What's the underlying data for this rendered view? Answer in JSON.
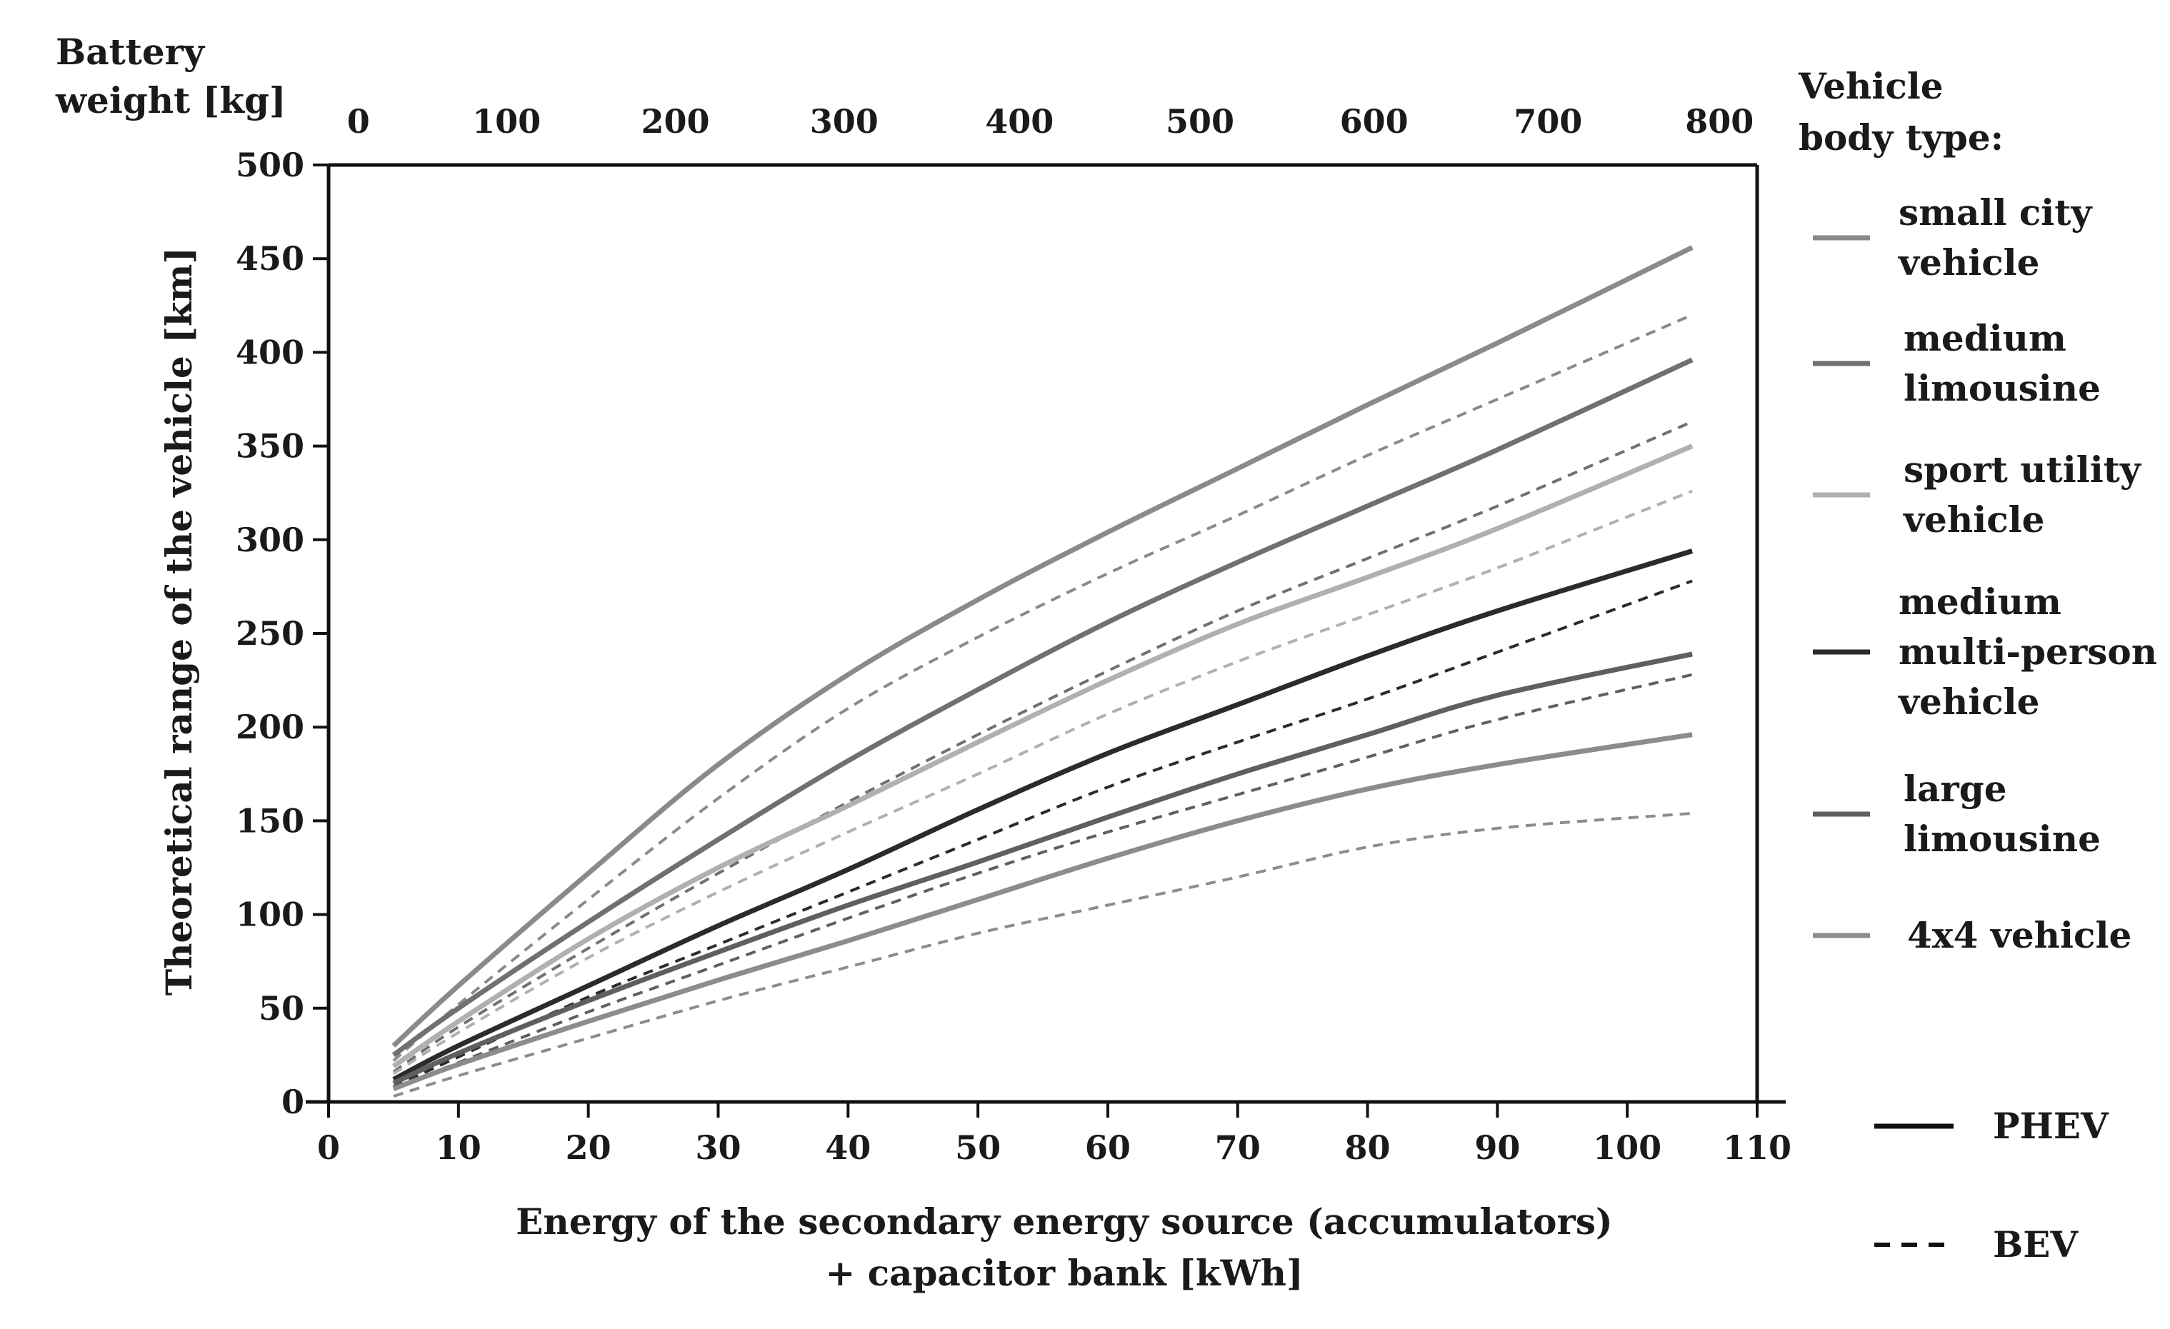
{
  "chart_data": {
    "type": "line",
    "x_axis": {
      "label_line1": "Energy of the secondary energy source (accumulators)",
      "label_line2": "+ capacitor bank [kWh]",
      "range": [
        0,
        110
      ],
      "ticks": [
        "0",
        "10",
        "20",
        "30",
        "40",
        "50",
        "60",
        "70",
        "80",
        "90",
        "100",
        "110"
      ]
    },
    "top_axis": {
      "label_line1": "Battery",
      "label_line2": "weight [kg]",
      "ticks": [
        "0",
        "100",
        "200",
        "300",
        "400",
        "500",
        "600",
        "700",
        "800"
      ],
      "tick_positions_kwh": [
        2.3,
        13.7,
        26.7,
        39.7,
        53.2,
        67.1,
        80.5,
        93.9,
        107.1
      ]
    },
    "y_axis": {
      "label": "Theoretical range of the vehicle [km]",
      "range": [
        0,
        500
      ],
      "ticks": [
        "0",
        "50",
        "100",
        "150",
        "200",
        "250",
        "300",
        "350",
        "400",
        "450",
        "500"
      ]
    },
    "legend_title_line1": "Vehicle",
    "legend_title_line2": "body type:",
    "body_types": [
      {
        "name_lines": [
          "small city",
          "vehicle"
        ],
        "color": "#8a8a8a"
      },
      {
        "name_lines": [
          "medium",
          "limousine"
        ],
        "color": "#707070"
      },
      {
        "name_lines": [
          "sport utility",
          "vehicle"
        ],
        "color": "#b0b0b0"
      },
      {
        "name_lines": [
          "medium",
          "multi-person",
          "vehicle"
        ],
        "color": "#2b2b2b"
      },
      {
        "name_lines": [
          "large",
          "limousine"
        ],
        "color": "#5f5f5f"
      },
      {
        "name_lines": [
          "4x4 vehicle"
        ],
        "color": "#8c8c8c"
      }
    ],
    "style_legend": [
      {
        "label": "PHEV",
        "dash": "solid"
      },
      {
        "label": "BEV",
        "dash": "dashed"
      }
    ],
    "x": [
      5,
      10,
      20,
      30,
      40,
      50,
      60,
      70,
      80,
      90,
      105
    ],
    "series": [
      {
        "name": "small city vehicle PHEV",
        "body": 0,
        "style": "solid",
        "values": [
          30,
          62,
          122,
          180,
          228,
          268,
          304,
          338,
          372,
          405,
          456
        ]
      },
      {
        "name": "small city vehicle BEV",
        "body": 0,
        "style": "dashed",
        "values": [
          22,
          52,
          108,
          162,
          210,
          248,
          282,
          313,
          345,
          375,
          420
        ]
      },
      {
        "name": "medium limousine PHEV",
        "body": 1,
        "style": "solid",
        "values": [
          25,
          50,
          96,
          140,
          182,
          220,
          256,
          288,
          318,
          348,
          396
        ]
      },
      {
        "name": "medium limousine BEV",
        "body": 1,
        "style": "dashed",
        "values": [
          16,
          40,
          82,
          122,
          160,
          196,
          230,
          262,
          290,
          318,
          363
        ]
      },
      {
        "name": "sport utility vehicle PHEV",
        "body": 2,
        "style": "solid",
        "values": [
          19,
          43,
          87,
          125,
          158,
          192,
          225,
          255,
          280,
          306,
          350
        ]
      },
      {
        "name": "sport utility vehicle BEV",
        "body": 2,
        "style": "dashed",
        "values": [
          15,
          37,
          77,
          112,
          144,
          175,
          207,
          235,
          260,
          285,
          326
        ]
      },
      {
        "name": "medium multi-person vehicle PHEV",
        "body": 3,
        "style": "solid",
        "values": [
          12,
          30,
          62,
          94,
          124,
          156,
          186,
          212,
          238,
          262,
          294
        ]
      },
      {
        "name": "medium multi-person vehicle BEV",
        "body": 3,
        "style": "dashed",
        "values": [
          8,
          24,
          56,
          84,
          112,
          140,
          168,
          192,
          215,
          240,
          278
        ]
      },
      {
        "name": "large limousine PHEV",
        "body": 4,
        "style": "solid",
        "values": [
          10,
          26,
          54,
          80,
          105,
          128,
          152,
          175,
          196,
          217,
          239
        ]
      },
      {
        "name": "large limousine BEV",
        "body": 4,
        "style": "dashed",
        "values": [
          7,
          21,
          48,
          73,
          98,
          122,
          144,
          164,
          184,
          204,
          228
        ]
      },
      {
        "name": "4x4 vehicle PHEV",
        "body": 5,
        "style": "solid",
        "values": [
          7,
          20,
          43,
          65,
          86,
          108,
          130,
          150,
          167,
          180,
          196
        ]
      },
      {
        "name": "4x4 vehicle BEV",
        "body": 5,
        "style": "dashed",
        "values": [
          3,
          14,
          34,
          54,
          72,
          90,
          105,
          120,
          136,
          146,
          154
        ]
      }
    ]
  }
}
